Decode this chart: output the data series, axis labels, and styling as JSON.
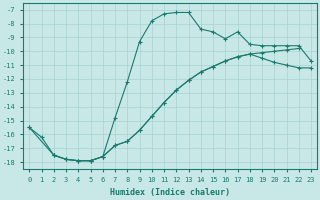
{
  "xlabel": "Humidex (Indice chaleur)",
  "bg_color": "#c8e8e8",
  "grid_color": "#a8d0d0",
  "line_color": "#1a7a6e",
  "xlim": [
    -0.5,
    23.5
  ],
  "ylim": [
    -18.5,
    -6.5
  ],
  "yticks": [
    -7,
    -8,
    -9,
    -10,
    -11,
    -12,
    -13,
    -14,
    -15,
    -16,
    -17,
    -18
  ],
  "xticks": [
    0,
    1,
    2,
    3,
    4,
    5,
    6,
    7,
    8,
    9,
    10,
    11,
    12,
    13,
    14,
    15,
    16,
    17,
    18,
    19,
    20,
    21,
    22,
    23
  ],
  "line1_x": [
    0,
    1,
    2,
    3,
    4,
    5,
    6,
    7,
    8,
    9,
    10,
    11,
    12,
    13,
    14,
    15,
    16,
    17,
    18,
    19,
    20,
    21,
    22,
    23
  ],
  "line1_y": [
    -15.5,
    -16.2,
    -17.5,
    -17.8,
    -17.9,
    -17.9,
    -17.6,
    -14.8,
    -12.2,
    -9.3,
    -7.8,
    -7.3,
    -7.2,
    -7.2,
    -8.4,
    -8.6,
    -9.1,
    -8.6,
    -9.5,
    -9.6,
    -9.6,
    -9.6,
    -9.6,
    -10.7
  ],
  "line2_x": [
    0,
    2,
    3,
    4,
    5,
    6,
    7,
    8,
    9,
    10,
    11,
    12,
    13,
    14,
    15,
    16,
    17,
    18,
    19,
    20,
    21,
    22
  ],
  "line2_y": [
    -15.5,
    -17.5,
    -17.8,
    -17.9,
    -17.9,
    -17.6,
    -16.8,
    -16.5,
    -15.7,
    -14.7,
    -13.7,
    -12.8,
    -12.1,
    -11.5,
    -11.1,
    -10.7,
    -10.4,
    -10.2,
    -10.1,
    -10.0,
    -9.9,
    -9.8
  ],
  "line3_x": [
    2,
    3,
    4,
    5,
    6,
    7,
    8,
    9,
    10,
    11,
    12,
    13,
    14,
    15,
    16,
    17,
    18,
    19,
    20,
    21,
    22,
    23
  ],
  "line3_y": [
    -17.5,
    -17.8,
    -17.9,
    -17.9,
    -17.6,
    -16.8,
    -16.5,
    -15.7,
    -14.7,
    -13.7,
    -12.8,
    -12.1,
    -11.5,
    -11.1,
    -10.7,
    -10.4,
    -10.2,
    -10.5,
    -10.8,
    -11.0,
    -11.2,
    -11.2
  ]
}
